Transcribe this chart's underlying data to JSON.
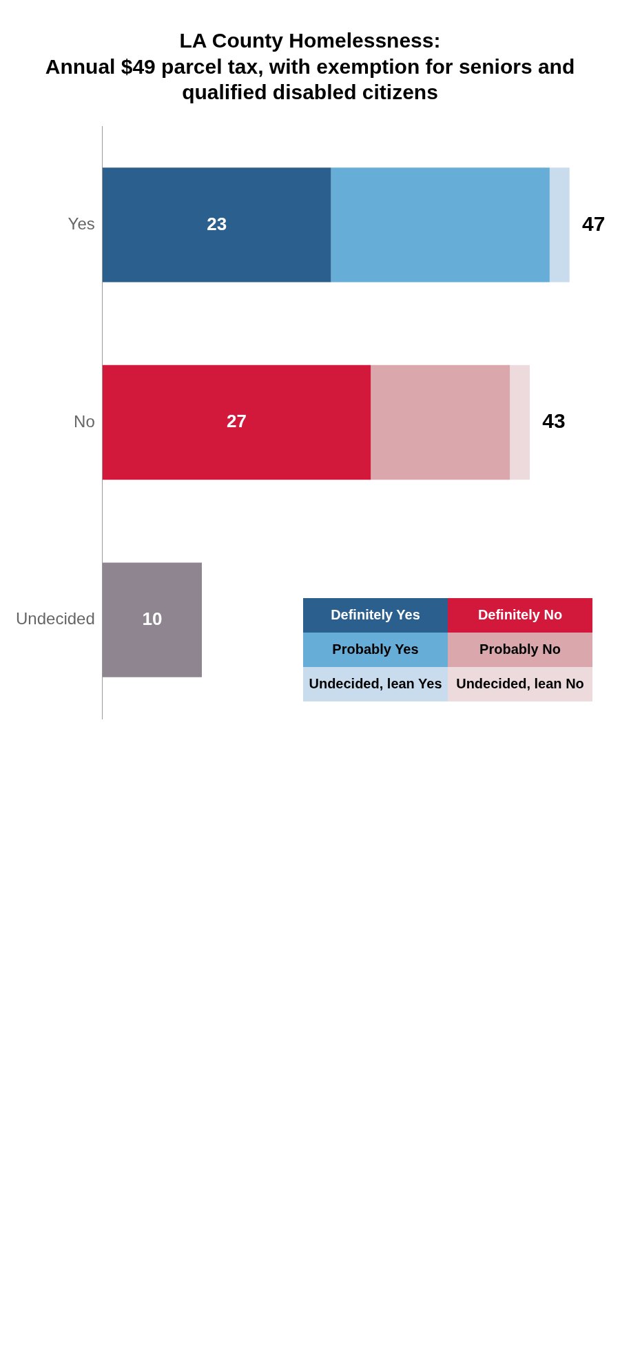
{
  "chart_data": {
    "type": "bar",
    "title": "LA County Homelessness:",
    "subtitle": "Annual $49 parcel tax, with exemption for seniors and qualified disabled citizens",
    "categories": [
      "Yes",
      "No",
      "Undecided"
    ],
    "stacked": true,
    "orientation": "horizontal",
    "legend": "bottom right",
    "series": [
      {
        "name": "Definitely Yes",
        "color": "#2b5f8e",
        "values": [
          23,
          null,
          null
        ],
        "value_labels": [
          "23",
          null,
          null
        ]
      },
      {
        "name": "Probably Yes",
        "color": "#66add7",
        "values": [
          22,
          null,
          null
        ]
      },
      {
        "name": "Undecided, lean Yes",
        "color": "#c8dcee",
        "values": [
          2,
          null,
          null
        ]
      },
      {
        "name": "Definitely No",
        "color": "#d2183b",
        "values": [
          null,
          27,
          null
        ],
        "value_labels": [
          null,
          "27",
          null
        ]
      },
      {
        "name": "Probably No",
        "color": "#d9a7ac",
        "values": [
          null,
          14,
          null
        ]
      },
      {
        "name": "Undecided, lean No",
        "color": "#eddadd",
        "values": [
          null,
          2,
          null
        ]
      },
      {
        "color": "#8e8590",
        "values": [
          null,
          null,
          10
        ],
        "value_labels": [
          null,
          null,
          "10"
        ]
      }
    ],
    "totals": [
      "47",
      "43",
      null
    ]
  }
}
